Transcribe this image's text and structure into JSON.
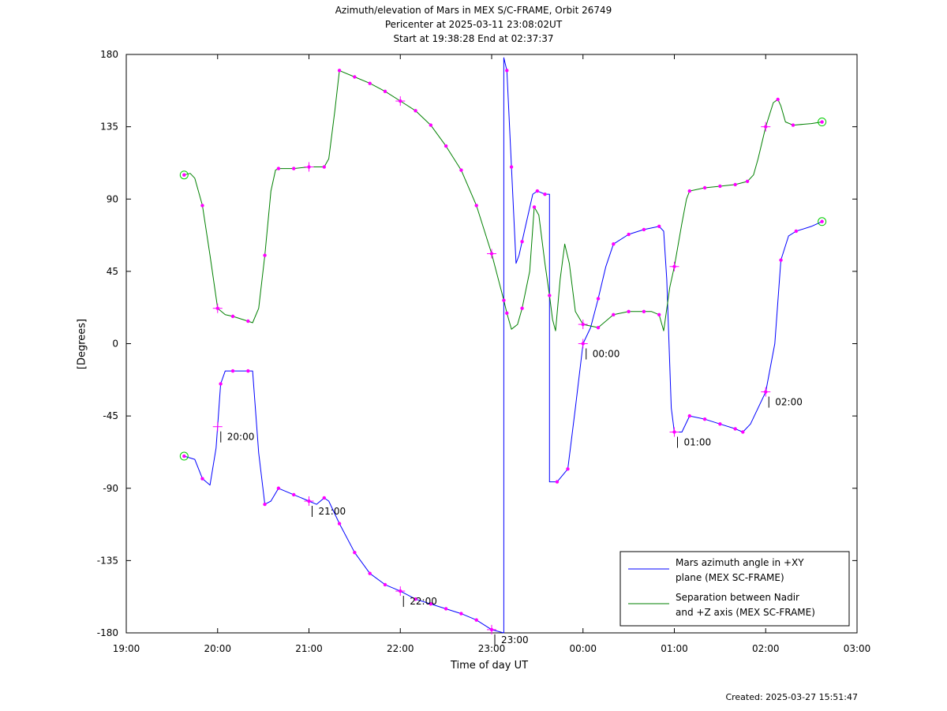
{
  "titles": {
    "line1": "Azimuth/elevation of Mars in MEX S/C-FRAME,  Orbit 26749",
    "line2": "Pericenter at 2025-03-11 23:08:02UT",
    "line3": "Start at 19:38:28 End at 02:37:37"
  },
  "footer": {
    "created": "Created: 2025-03-27 15:51:47"
  },
  "colors": {
    "azimuth": "#0000ff",
    "separation": "#008000",
    "marker": "#ff00ff",
    "endpoint": "#00cc00"
  },
  "chart_data": {
    "type": "line",
    "xlabel": "Time of day UT",
    "ylabel": "[Degrees]",
    "xlim": [
      "19:00",
      "03:00"
    ],
    "ylim": [
      -180,
      180
    ],
    "x_ticks": [
      "19:00",
      "20:00",
      "21:00",
      "22:00",
      "23:00",
      "00:00",
      "01:00",
      "02:00",
      "03:00"
    ],
    "y_ticks": [
      -180,
      -135,
      -90,
      -45,
      0,
      45,
      90,
      135,
      180
    ],
    "legend_position": "bottom-right",
    "series": [
      {
        "name": "Mars azimuth angle in +XY plane (MEX SC-FRAME)",
        "legend_lines": [
          "Mars azimuth angle in +XY",
          "plane (MEX SC-FRAME)"
        ],
        "color": "#0000ff",
        "points": [
          [
            "19:38",
            -70
          ],
          [
            "19:45",
            -72
          ],
          [
            "19:50",
            -84
          ],
          [
            "19:55",
            -88
          ],
          [
            "19:59",
            -65
          ],
          [
            "20:02",
            -25
          ],
          [
            "20:05",
            -17
          ],
          [
            "20:10",
            -17
          ],
          [
            "20:20",
            -17
          ],
          [
            "20:23",
            -17
          ],
          [
            "20:27",
            -68
          ],
          [
            "20:31",
            -100
          ],
          [
            "20:35",
            -98
          ],
          [
            "20:40",
            -90
          ],
          [
            "20:50",
            -94
          ],
          [
            "21:00",
            -98
          ],
          [
            "21:05",
            -100
          ],
          [
            "21:10",
            -96
          ],
          [
            "21:13",
            -98
          ],
          [
            "21:20",
            -112
          ],
          [
            "21:30",
            -130
          ],
          [
            "21:40",
            -143
          ],
          [
            "21:50",
            -150
          ],
          [
            "22:00",
            -154
          ],
          [
            "22:10",
            -159
          ],
          [
            "22:20",
            -162
          ],
          [
            "22:30",
            -165
          ],
          [
            "22:40",
            -168
          ],
          [
            "22:50",
            -172
          ],
          [
            "23:00",
            -178
          ],
          [
            "23:08",
            -180
          ],
          [
            "23:08",
            178
          ],
          [
            "23:10",
            170
          ],
          [
            "23:13",
            110
          ],
          [
            "23:16",
            50
          ],
          [
            "23:18",
            55
          ],
          [
            "23:22",
            72
          ],
          [
            "23:27",
            93
          ],
          [
            "23:30",
            95
          ],
          [
            "23:35",
            93
          ],
          [
            "23:38",
            93
          ],
          [
            "23:38",
            -86
          ],
          [
            "23:43",
            -86
          ],
          [
            "23:50",
            -78
          ],
          [
            "23:55",
            -40
          ],
          [
            "00:00",
            0
          ],
          [
            "00:05",
            10
          ],
          [
            "00:10",
            28
          ],
          [
            "00:15",
            48
          ],
          [
            "00:20",
            62
          ],
          [
            "00:30",
            68
          ],
          [
            "00:40",
            71
          ],
          [
            "00:50",
            73
          ],
          [
            "00:53",
            70
          ],
          [
            "00:55",
            40
          ],
          [
            "00:58",
            -40
          ],
          [
            "01:00",
            -55
          ],
          [
            "01:05",
            -55
          ],
          [
            "01:10",
            -45
          ],
          [
            "01:20",
            -47
          ],
          [
            "01:30",
            -50
          ],
          [
            "01:40",
            -53
          ],
          [
            "01:45",
            -55
          ],
          [
            "01:50",
            -50
          ],
          [
            "02:00",
            -30
          ],
          [
            "02:06",
            0
          ],
          [
            "02:10",
            52
          ],
          [
            "02:15",
            67
          ],
          [
            "02:20",
            70
          ],
          [
            "02:30",
            73
          ],
          [
            "02:37",
            76
          ]
        ],
        "markers": [
          "19:38",
          "19:50",
          "20:02",
          "20:10",
          "20:20",
          "20:31",
          "20:40",
          "20:50",
          "21:00",
          "21:10",
          "21:20",
          "21:30",
          "21:40",
          "21:50",
          "22:00",
          "22:10",
          "22:20",
          "22:30",
          "22:40",
          "22:50",
          "23:00",
          "23:10",
          "23:13",
          "23:20",
          "23:30",
          "23:35",
          "23:43",
          "23:50",
          "00:00",
          "00:10",
          "00:20",
          "00:30",
          "00:40",
          "00:50",
          "01:00",
          "01:10",
          "01:20",
          "01:30",
          "01:40",
          "01:45",
          "02:00",
          "02:10",
          "02:20",
          "02:37"
        ],
        "hour_crosses": [
          "20:00",
          "21:00",
          "22:00",
          "23:00",
          "00:00",
          "01:00",
          "02:00"
        ],
        "hour_labels": [
          "20:00",
          "21:00",
          "22:00",
          "23:00",
          "00:00",
          "01:00",
          "02:00"
        ]
      },
      {
        "name": "Separation between Nadir and +Z axis (MEX SC-FRAME)",
        "legend_lines": [
          "Separation between Nadir",
          "and +Z axis (MEX SC-FRAME)"
        ],
        "color": "#008000",
        "points": [
          [
            "19:38",
            105
          ],
          [
            "19:42",
            106
          ],
          [
            "19:45",
            103
          ],
          [
            "19:50",
            86
          ],
          [
            "19:55",
            55
          ],
          [
            "20:00",
            22
          ],
          [
            "20:05",
            18
          ],
          [
            "20:10",
            17
          ],
          [
            "20:20",
            14
          ],
          [
            "20:23",
            13
          ],
          [
            "20:27",
            22
          ],
          [
            "20:31",
            55
          ],
          [
            "20:35",
            95
          ],
          [
            "20:38",
            108
          ],
          [
            "20:40",
            109
          ],
          [
            "20:50",
            109
          ],
          [
            "21:00",
            110
          ],
          [
            "21:10",
            110
          ],
          [
            "21:13",
            115
          ],
          [
            "21:17",
            145
          ],
          [
            "21:20",
            170
          ],
          [
            "21:30",
            166
          ],
          [
            "21:40",
            162
          ],
          [
            "21:50",
            157
          ],
          [
            "22:00",
            151
          ],
          [
            "22:10",
            145
          ],
          [
            "22:20",
            136
          ],
          [
            "22:30",
            123
          ],
          [
            "22:40",
            108
          ],
          [
            "22:50",
            86
          ],
          [
            "23:00",
            56
          ],
          [
            "23:08",
            27
          ],
          [
            "23:10",
            19
          ],
          [
            "23:13",
            9
          ],
          [
            "23:17",
            12
          ],
          [
            "23:20",
            22
          ],
          [
            "23:25",
            45
          ],
          [
            "23:28",
            85
          ],
          [
            "23:31",
            80
          ],
          [
            "23:35",
            50
          ],
          [
            "23:38",
            30
          ],
          [
            "23:40",
            15
          ],
          [
            "23:42",
            8
          ],
          [
            "23:45",
            40
          ],
          [
            "23:48",
            62
          ],
          [
            "23:51",
            50
          ],
          [
            "23:55",
            20
          ],
          [
            "00:00",
            12
          ],
          [
            "00:10",
            10
          ],
          [
            "00:20",
            18
          ],
          [
            "00:30",
            20
          ],
          [
            "00:40",
            20
          ],
          [
            "00:45",
            20
          ],
          [
            "00:50",
            18
          ],
          [
            "00:53",
            8
          ],
          [
            "00:57",
            35
          ],
          [
            "01:00",
            48
          ],
          [
            "01:05",
            75
          ],
          [
            "01:08",
            90
          ],
          [
            "01:10",
            95
          ],
          [
            "01:20",
            97
          ],
          [
            "01:30",
            98
          ],
          [
            "01:40",
            99
          ],
          [
            "01:48",
            101
          ],
          [
            "01:52",
            105
          ],
          [
            "01:55",
            115
          ],
          [
            "02:00",
            135
          ],
          [
            "02:05",
            150
          ],
          [
            "02:08",
            152
          ],
          [
            "02:10",
            148
          ],
          [
            "02:13",
            138
          ],
          [
            "02:18",
            136
          ],
          [
            "02:30",
            137
          ],
          [
            "02:37",
            138
          ]
        ],
        "markers": [
          "19:38",
          "19:50",
          "20:00",
          "20:10",
          "20:20",
          "20:31",
          "20:40",
          "20:50",
          "21:00",
          "21:10",
          "21:20",
          "21:30",
          "21:40",
          "21:50",
          "22:00",
          "22:10",
          "22:20",
          "22:30",
          "22:40",
          "22:50",
          "23:00",
          "23:08",
          "23:10",
          "23:20",
          "23:28",
          "23:38",
          "00:00",
          "00:10",
          "00:20",
          "00:30",
          "00:40",
          "00:50",
          "01:00",
          "01:10",
          "01:20",
          "01:30",
          "01:40",
          "01:48",
          "02:00",
          "02:08",
          "02:18",
          "02:37"
        ],
        "hour_crosses": [
          "20:00",
          "21:00",
          "22:00",
          "23:00",
          "00:00",
          "01:00",
          "02:00"
        ]
      }
    ]
  }
}
